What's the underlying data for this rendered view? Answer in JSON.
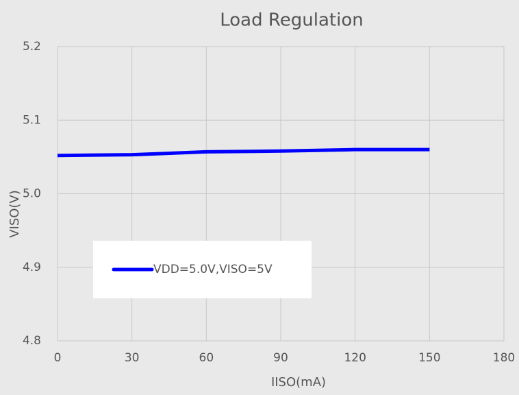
{
  "chart_data": {
    "type": "line",
    "title": "Load Regulation",
    "xlabel": "IISO(mA)",
    "ylabel": "VISO(V)",
    "x": [
      0,
      30,
      60,
      90,
      120,
      150
    ],
    "series": [
      {
        "name": "VDD=5.0V,VISO=5V",
        "color": "#0000ff",
        "values": [
          5.052,
          5.053,
          5.057,
          5.058,
          5.06,
          5.06
        ]
      }
    ],
    "xlim": [
      0,
      180
    ],
    "xticks": [
      0,
      30,
      60,
      90,
      120,
      150,
      180
    ],
    "ylim": [
      4.8,
      5.2
    ],
    "yticks": [
      4.8,
      4.9,
      {
        "value": 5,
        "label": "5.0"
      },
      5.1,
      5.2
    ],
    "grid": true,
    "legend": "lower left"
  }
}
